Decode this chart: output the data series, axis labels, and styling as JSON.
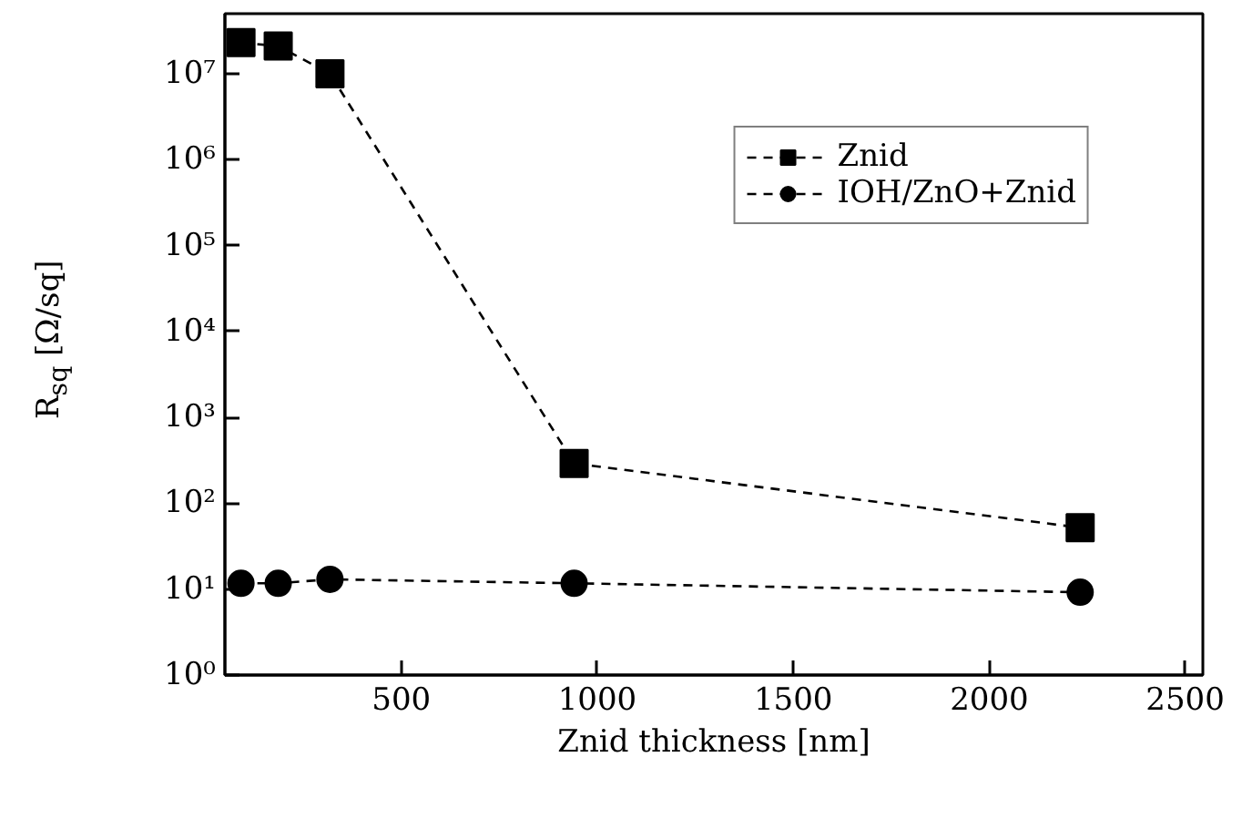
{
  "chart_data": {
    "type": "line",
    "xlabel": "Znid thickness [nm]",
    "ylabel": "R$_{sq}$ [Ω/sq]",
    "x": [
      91,
      186,
      318,
      941,
      2232
    ],
    "series": [
      {
        "name": "Znid",
        "color": "#000000",
        "marker": "square",
        "values": [
          23000000,
          21000000,
          10000000,
          290,
          52
        ]
      },
      {
        "name": "IOH/ZnO+Znid",
        "color": "#000000",
        "marker": "circle",
        "values": [
          11.7,
          11.7,
          13,
          11.7,
          9.2
        ]
      }
    ],
    "xlim": [
      50,
      2545
    ],
    "ylim": [
      1,
      50000000
    ],
    "xticks": [
      500,
      1000,
      1500,
      2000,
      2500
    ],
    "yticks": [
      {
        "value": 1,
        "label": "10⁰"
      },
      {
        "value": 10,
        "label": "10¹"
      },
      {
        "value": 100,
        "label": "10²"
      },
      {
        "value": 1000,
        "label": "10³"
      },
      {
        "value": 10000,
        "label": "10⁴"
      },
      {
        "value": 100000,
        "label": "10⁵"
      },
      {
        "value": 1000000,
        "label": "10⁶"
      },
      {
        "value": 10000000,
        "label": "10⁷"
      }
    ],
    "log": "y",
    "grid": false,
    "legend": "top right",
    "line_style": "dashed"
  }
}
